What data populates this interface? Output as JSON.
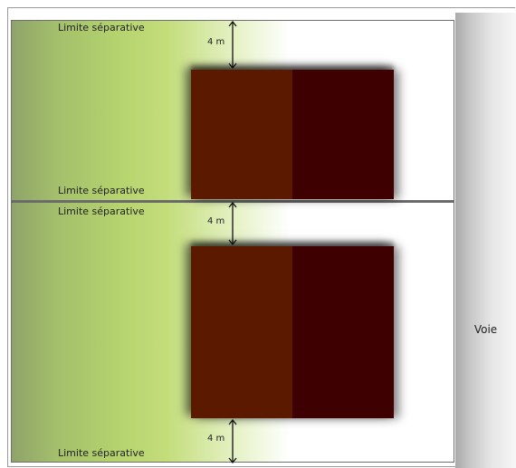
{
  "separation_label": "Limite séparative",
  "distance_label": "4 m",
  "road_label": "Voie",
  "colors": {
    "building_left": "#5b1a00",
    "building_right": "#3e0000",
    "vegetation": "#b6d46f",
    "road": "#c8c8c8"
  }
}
